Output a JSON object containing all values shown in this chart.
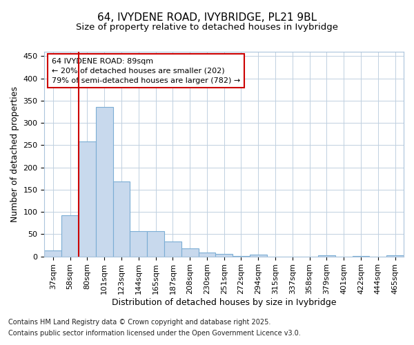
{
  "title_line1": "64, IVYDENE ROAD, IVYBRIDGE, PL21 9BL",
  "title_line2": "Size of property relative to detached houses in Ivybridge",
  "xlabel": "Distribution of detached houses by size in Ivybridge",
  "ylabel": "Number of detached properties",
  "categories": [
    "37sqm",
    "58sqm",
    "80sqm",
    "101sqm",
    "123sqm",
    "144sqm",
    "165sqm",
    "187sqm",
    "208sqm",
    "230sqm",
    "251sqm",
    "272sqm",
    "294sqm",
    "315sqm",
    "337sqm",
    "358sqm",
    "379sqm",
    "401sqm",
    "422sqm",
    "444sqm",
    "465sqm"
  ],
  "values": [
    13,
    93,
    258,
    336,
    168,
    57,
    57,
    33,
    18,
    8,
    5,
    1,
    4,
    0,
    0,
    0,
    3,
    0,
    1,
    0,
    3
  ],
  "bar_color": "#c8d9ed",
  "bar_edge_color": "#7badd4",
  "grid_color": "#c0d0e0",
  "background_color": "#ffffff",
  "plot_bg_color": "#ffffff",
  "annotation_line1": "64 IVYDENE ROAD: 89sqm",
  "annotation_line2": "← 20% of detached houses are smaller (202)",
  "annotation_line3": "79% of semi-detached houses are larger (782) →",
  "vline_color": "#cc0000",
  "annotation_box_edge": "#cc0000",
  "vline_x_index": 2,
  "ylim": [
    0,
    460
  ],
  "yticks": [
    0,
    50,
    100,
    150,
    200,
    250,
    300,
    350,
    400,
    450
  ],
  "title_fontsize": 11,
  "subtitle_fontsize": 9.5,
  "axis_label_fontsize": 9,
  "tick_fontsize": 8,
  "annotation_fontsize": 8,
  "footnote_fontsize": 7,
  "footnote_line1": "Contains HM Land Registry data © Crown copyright and database right 2025.",
  "footnote_line2": "Contains public sector information licensed under the Open Government Licence v3.0."
}
